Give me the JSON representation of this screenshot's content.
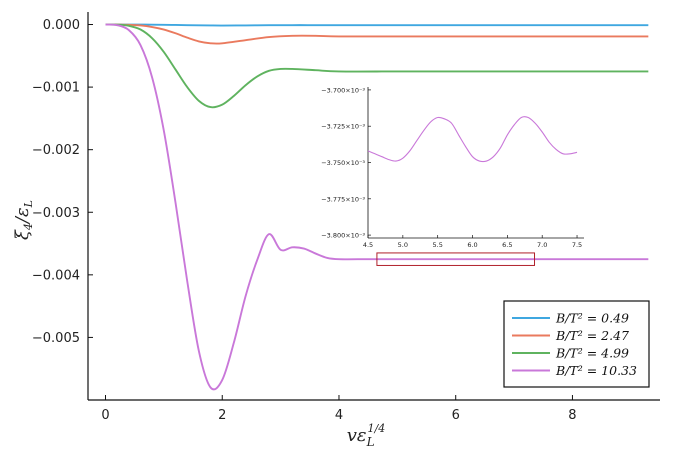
{
  "chart_data": [
    {
      "type": "line",
      "title": "",
      "xlabel": "vε_L^{1/4}",
      "ylabel": "ξ_4 / ε_L",
      "xlim": [
        -0.3,
        9.5
      ],
      "ylim": [
        -0.006,
        0.0002
      ],
      "x_ticks": [
        0,
        2,
        4,
        6,
        8
      ],
      "x_tick_labels": [
        "0",
        "2",
        "4",
        "6",
        "8"
      ],
      "y_ticks": [
        0.0,
        -0.001,
        -0.002,
        -0.003,
        -0.004,
        -0.005
      ],
      "y_tick_labels": [
        "0.000",
        "−0.001",
        "−0.002",
        "−0.003",
        "−0.004",
        "−0.005"
      ],
      "grid": false,
      "legend_position": "bottom-right",
      "series": [
        {
          "name": "B/T² = 0.49",
          "color": "#3fa7e0",
          "x": [
            0,
            0.2,
            0.4,
            0.6,
            0.8,
            1.0,
            1.2,
            1.4,
            1.6,
            1.8,
            2.0,
            2.4,
            2.8,
            3.2,
            3.6,
            4.0,
            5.0,
            6.0,
            7.0,
            8.0,
            9.3
          ],
          "y": [
            0,
            0,
            0,
            -1e-06,
            -2e-06,
            -4e-06,
            -7e-06,
            -1e-05,
            -1.3e-05,
            -1.5e-05,
            -1.6e-05,
            -1.4e-05,
            -1.1e-05,
            -1e-05,
            -1e-05,
            -1e-05,
            -1e-05,
            -1e-05,
            -1e-05,
            -1e-05,
            -1e-05
          ]
        },
        {
          "name": "B/T² = 2.47",
          "color": "#ea7a5e",
          "x": [
            0,
            0.2,
            0.4,
            0.6,
            0.8,
            1.0,
            1.2,
            1.4,
            1.6,
            1.8,
            2.0,
            2.4,
            2.8,
            3.2,
            3.6,
            4.0,
            5.0,
            6.0,
            7.0,
            8.0,
            9.3
          ],
          "y": [
            0,
            0,
            -5e-06,
            -1.5e-05,
            -4e-05,
            -8e-05,
            -0.00014,
            -0.00021,
            -0.00027,
            -0.0003,
            -0.0003,
            -0.00025,
            -0.0002,
            -0.00018,
            -0.00018,
            -0.00019,
            -0.00019,
            -0.00019,
            -0.00019,
            -0.00019,
            -0.00019
          ]
        },
        {
          "name": "B/T² = 4.99",
          "color": "#5fb35f",
          "x": [
            0,
            0.2,
            0.4,
            0.6,
            0.8,
            1.0,
            1.2,
            1.4,
            1.6,
            1.8,
            2.0,
            2.2,
            2.4,
            2.6,
            2.8,
            3.0,
            3.2,
            3.6,
            4.0,
            5.0,
            6.0,
            7.0,
            8.0,
            9.3
          ],
          "y": [
            0,
            -2e-06,
            -2e-05,
            -8e-05,
            -0.00022,
            -0.00044,
            -0.00072,
            -0.001,
            -0.00122,
            -0.00132,
            -0.00128,
            -0.00114,
            -0.00097,
            -0.00083,
            -0.00074,
            -0.00071,
            -0.00071,
            -0.00073,
            -0.00075,
            -0.00075,
            -0.00075,
            -0.00075,
            -0.00075,
            -0.00075
          ]
        },
        {
          "name": "B/T² = 10.33",
          "color": "#c978d9",
          "x": [
            0,
            0.2,
            0.4,
            0.6,
            0.8,
            1.0,
            1.2,
            1.4,
            1.6,
            1.8,
            2.0,
            2.2,
            2.4,
            2.6,
            2.8,
            3.0,
            3.2,
            3.4,
            3.6,
            3.8,
            4.0,
            4.5,
            5.0,
            6.0,
            7.0,
            8.0,
            9.3
          ],
          "y": [
            0,
            -1e-05,
            -9e-05,
            -0.00033,
            -0.00085,
            -0.0017,
            -0.00285,
            -0.0041,
            -0.00522,
            -0.0058,
            -0.00568,
            -0.00508,
            -0.00434,
            -0.00376,
            -0.00335,
            -0.0036,
            -0.00356,
            -0.00358,
            -0.00366,
            -0.00373,
            -0.00375,
            -0.00375,
            -0.00375,
            -0.00375,
            -0.00375,
            -0.00375,
            -0.00375
          ]
        }
      ]
    },
    {
      "type": "line",
      "title": "",
      "xlim": [
        4.5,
        7.6
      ],
      "ylim": [
        -0.003802,
        -0.003698
      ],
      "x_ticks": [
        4.5,
        5.0,
        5.5,
        6.0,
        6.5,
        7.0,
        7.5
      ],
      "x_tick_labels": [
        "4.5",
        "5.0",
        "5.5",
        "6.0",
        "6.5",
        "7.0",
        "7.5"
      ],
      "y_ticks": [
        -0.0037,
        -0.003725,
        -0.00375,
        -0.003775,
        -0.0038
      ],
      "y_tick_labels": [
        "−3.700×10⁻³",
        "−3.725×10⁻³",
        "−3.750×10⁻³",
        "−3.775×10⁻³",
        "−3.800×10⁻³"
      ],
      "grid": false,
      "series": [
        {
          "name": "B/T² = 10.33",
          "color": "#c978d9",
          "x": [
            4.5,
            4.6,
            4.7,
            4.8,
            4.9,
            5.0,
            5.1,
            5.2,
            5.3,
            5.4,
            5.5,
            5.6,
            5.7,
            5.8,
            5.9,
            6.0,
            6.1,
            6.2,
            6.3,
            6.4,
            6.5,
            6.6,
            6.7,
            6.8,
            6.9,
            7.0,
            7.1,
            7.2,
            7.3,
            7.4,
            7.5
          ],
          "y": [
            -0.003742,
            -0.003744,
            -0.003746,
            -0.003748,
            -0.003749,
            -0.003747,
            -0.003742,
            -0.003735,
            -0.003728,
            -0.003722,
            -0.003719,
            -0.00372,
            -0.003723,
            -0.003731,
            -0.003739,
            -0.003746,
            -0.003749,
            -0.003749,
            -0.003746,
            -0.00374,
            -0.003731,
            -0.003724,
            -0.003719,
            -0.003719,
            -0.003723,
            -0.003729,
            -0.003736,
            -0.003741,
            -0.003744,
            -0.003744,
            -0.003743
          ]
        }
      ]
    }
  ]
}
